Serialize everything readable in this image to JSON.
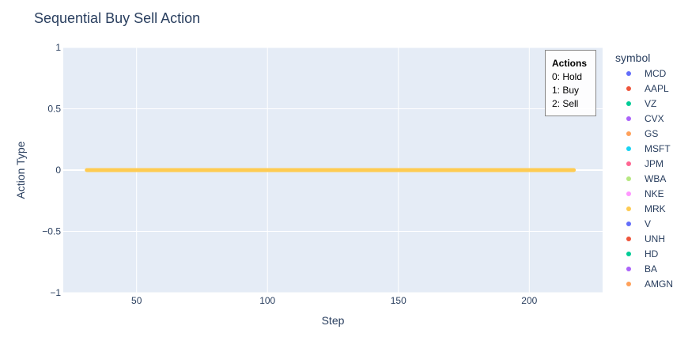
{
  "chart_data": {
    "type": "scatter",
    "title": "Sequential Buy Sell Action",
    "xlabel": "Step",
    "ylabel": "Action Type",
    "xlim": [
      22,
      228
    ],
    "ylim": [
      -1,
      1
    ],
    "x_ticks": [
      50,
      100,
      150,
      200
    ],
    "x_tick_labels": [
      "50",
      "100",
      "150",
      "200"
    ],
    "y_ticks": [
      -1,
      -0.5,
      0,
      0.5,
      1
    ],
    "y_tick_labels": [
      "−1",
      "−0.5",
      "0",
      "0.5",
      "1"
    ],
    "grid": true,
    "legend": {
      "title": "symbol",
      "placement": "right",
      "items": [
        {
          "name": "MCD",
          "color": "#636efa"
        },
        {
          "name": "AAPL",
          "color": "#EF553B"
        },
        {
          "name": "VZ",
          "color": "#00cc96"
        },
        {
          "name": "CVX",
          "color": "#ab63fa"
        },
        {
          "name": "GS",
          "color": "#FFA15A"
        },
        {
          "name": "MSFT",
          "color": "#19d3f3"
        },
        {
          "name": "JPM",
          "color": "#FF6692"
        },
        {
          "name": "WBA",
          "color": "#B6E880"
        },
        {
          "name": "NKE",
          "color": "#FF97FF"
        },
        {
          "name": "MRK",
          "color": "#FECB52"
        },
        {
          "name": "V",
          "color": "#636efa"
        },
        {
          "name": "UNH",
          "color": "#EF553B"
        },
        {
          "name": "HD",
          "color": "#00cc96"
        },
        {
          "name": "BA",
          "color": "#ab63fa"
        },
        {
          "name": "AMGN",
          "color": "#FFA15A"
        }
      ]
    },
    "annotation": {
      "lines": [
        "Actions",
        "0: Hold",
        "1: Buy",
        "2: Sell"
      ],
      "placement": "top-right"
    },
    "series": [
      {
        "name": "MRK",
        "color": "#FECB52",
        "x_range": [
          31,
          217
        ],
        "y": 0
      }
    ],
    "colors": {
      "plot_bg": "#E5ECF6",
      "grid": "#ffffff",
      "text": "#2a3f5f"
    }
  }
}
